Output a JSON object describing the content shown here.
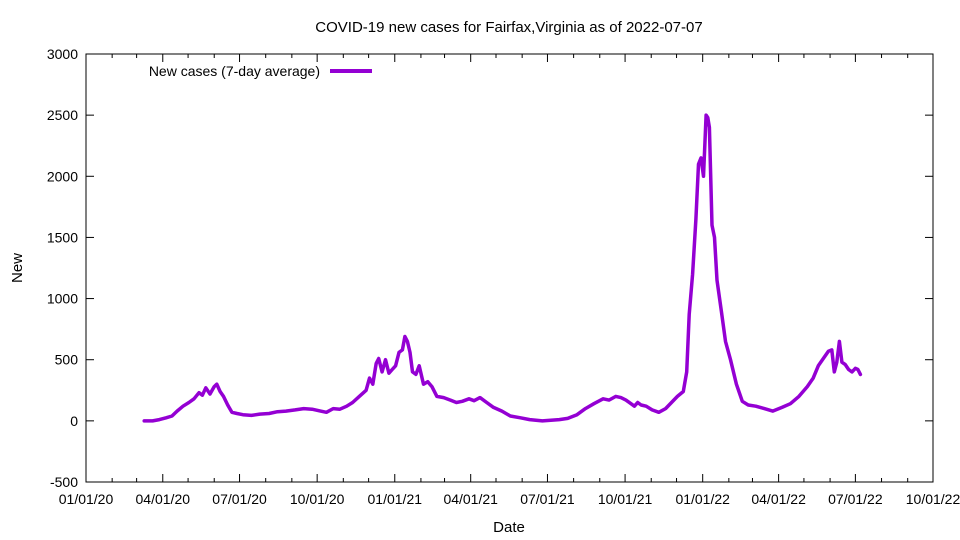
{
  "chart_data": {
    "type": "line",
    "title": "COVID-19 new cases for Fairfax,Virginia as of 2022-07-07",
    "xlabel": "Date",
    "ylabel": "New",
    "xlim": [
      "2020-01-01",
      "2022-10-01"
    ],
    "ylim": [
      -500,
      3000
    ],
    "x_ticks": [
      "2020-01-01",
      "2020-04-01",
      "2020-07-01",
      "2020-10-01",
      "2021-01-01",
      "2021-04-01",
      "2021-07-01",
      "2021-10-01",
      "2022-01-01",
      "2022-04-01",
      "2022-07-01",
      "2022-10-01"
    ],
    "x_tick_labels": [
      "01/01/20",
      "04/01/20",
      "07/01/20",
      "10/01/20",
      "01/01/21",
      "04/01/21",
      "07/01/21",
      "10/01/21",
      "01/01/22",
      "04/01/22",
      "07/01/22",
      "10/01/22"
    ],
    "y_ticks": [
      -500,
      0,
      500,
      1000,
      1500,
      2000,
      2500,
      3000
    ],
    "y_tick_labels": [
      "-500",
      "0",
      "500",
      "1000",
      "1500",
      "2000",
      "2500",
      "3000"
    ],
    "legend": {
      "position": "top-left",
      "entries": [
        "New cases (7-day average)"
      ]
    },
    "grid": false,
    "series": [
      {
        "name": "New cases (7-day average)",
        "color": "#9400d3",
        "points": [
          [
            "2020-03-10",
            0
          ],
          [
            "2020-03-20",
            0
          ],
          [
            "2020-03-28",
            10
          ],
          [
            "2020-04-05",
            25
          ],
          [
            "2020-04-12",
            40
          ],
          [
            "2020-04-18",
            80
          ],
          [
            "2020-04-25",
            120
          ],
          [
            "2020-05-02",
            150
          ],
          [
            "2020-05-08",
            180
          ],
          [
            "2020-05-14",
            230
          ],
          [
            "2020-05-18",
            210
          ],
          [
            "2020-05-22",
            270
          ],
          [
            "2020-05-27",
            220
          ],
          [
            "2020-06-01",
            280
          ],
          [
            "2020-06-04",
            300
          ],
          [
            "2020-06-08",
            240
          ],
          [
            "2020-06-12",
            200
          ],
          [
            "2020-06-17",
            130
          ],
          [
            "2020-06-22",
            70
          ],
          [
            "2020-06-28",
            60
          ],
          [
            "2020-07-05",
            50
          ],
          [
            "2020-07-15",
            45
          ],
          [
            "2020-07-25",
            55
          ],
          [
            "2020-08-05",
            60
          ],
          [
            "2020-08-15",
            75
          ],
          [
            "2020-08-25",
            80
          ],
          [
            "2020-09-05",
            90
          ],
          [
            "2020-09-15",
            100
          ],
          [
            "2020-09-25",
            95
          ],
          [
            "2020-10-05",
            80
          ],
          [
            "2020-10-12",
            70
          ],
          [
            "2020-10-20",
            100
          ],
          [
            "2020-10-28",
            95
          ],
          [
            "2020-11-05",
            120
          ],
          [
            "2020-11-12",
            150
          ],
          [
            "2020-11-20",
            200
          ],
          [
            "2020-11-28",
            250
          ],
          [
            "2020-12-02",
            350
          ],
          [
            "2020-12-06",
            300
          ],
          [
            "2020-12-10",
            470
          ],
          [
            "2020-12-13",
            510
          ],
          [
            "2020-12-17",
            400
          ],
          [
            "2020-12-21",
            500
          ],
          [
            "2020-12-25",
            390
          ],
          [
            "2020-12-29",
            420
          ],
          [
            "2021-01-02",
            450
          ],
          [
            "2021-01-06",
            560
          ],
          [
            "2021-01-10",
            580
          ],
          [
            "2021-01-13",
            690
          ],
          [
            "2021-01-16",
            650
          ],
          [
            "2021-01-19",
            560
          ],
          [
            "2021-01-22",
            400
          ],
          [
            "2021-01-26",
            380
          ],
          [
            "2021-01-30",
            450
          ],
          [
            "2021-02-04",
            300
          ],
          [
            "2021-02-09",
            320
          ],
          [
            "2021-02-14",
            280
          ],
          [
            "2021-02-20",
            200
          ],
          [
            "2021-02-28",
            190
          ],
          [
            "2021-03-08",
            170
          ],
          [
            "2021-03-15",
            150
          ],
          [
            "2021-03-22",
            160
          ],
          [
            "2021-03-30",
            180
          ],
          [
            "2021-04-05",
            165
          ],
          [
            "2021-04-12",
            190
          ],
          [
            "2021-04-20",
            150
          ],
          [
            "2021-04-28",
            110
          ],
          [
            "2021-05-08",
            80
          ],
          [
            "2021-05-18",
            40
          ],
          [
            "2021-05-30",
            25
          ],
          [
            "2021-06-10",
            10
          ],
          [
            "2021-06-25",
            0
          ],
          [
            "2021-07-05",
            5
          ],
          [
            "2021-07-15",
            10
          ],
          [
            "2021-07-25",
            20
          ],
          [
            "2021-08-05",
            50
          ],
          [
            "2021-08-15",
            100
          ],
          [
            "2021-08-25",
            140
          ],
          [
            "2021-09-05",
            180
          ],
          [
            "2021-09-12",
            170
          ],
          [
            "2021-09-20",
            200
          ],
          [
            "2021-09-26",
            190
          ],
          [
            "2021-10-02",
            170
          ],
          [
            "2021-10-08",
            140
          ],
          [
            "2021-10-12",
            120
          ],
          [
            "2021-10-16",
            150
          ],
          [
            "2021-10-20",
            130
          ],
          [
            "2021-10-26",
            120
          ],
          [
            "2021-11-02",
            90
          ],
          [
            "2021-11-10",
            70
          ],
          [
            "2021-11-18",
            100
          ],
          [
            "2021-11-25",
            150
          ],
          [
            "2021-12-02",
            200
          ],
          [
            "2021-12-09",
            240
          ],
          [
            "2021-12-13",
            400
          ],
          [
            "2021-12-16",
            870
          ],
          [
            "2021-12-20",
            1200
          ],
          [
            "2021-12-24",
            1650
          ],
          [
            "2021-12-27",
            2100
          ],
          [
            "2021-12-30",
            2150
          ],
          [
            "2022-01-02",
            2000
          ],
          [
            "2022-01-05",
            2500
          ],
          [
            "2022-01-07",
            2480
          ],
          [
            "2022-01-09",
            2400
          ],
          [
            "2022-01-12",
            1600
          ],
          [
            "2022-01-15",
            1500
          ],
          [
            "2022-01-18",
            1150
          ],
          [
            "2022-01-23",
            900
          ],
          [
            "2022-01-28",
            650
          ],
          [
            "2022-02-03",
            500
          ],
          [
            "2022-02-10",
            300
          ],
          [
            "2022-02-17",
            160
          ],
          [
            "2022-02-24",
            130
          ],
          [
            "2022-03-05",
            120
          ],
          [
            "2022-03-15",
            100
          ],
          [
            "2022-03-25",
            80
          ],
          [
            "2022-04-05",
            110
          ],
          [
            "2022-04-15",
            140
          ],
          [
            "2022-04-25",
            200
          ],
          [
            "2022-05-05",
            280
          ],
          [
            "2022-05-12",
            350
          ],
          [
            "2022-05-18",
            450
          ],
          [
            "2022-05-25",
            520
          ],
          [
            "2022-05-30",
            570
          ],
          [
            "2022-06-03",
            580
          ],
          [
            "2022-06-06",
            400
          ],
          [
            "2022-06-09",
            480
          ],
          [
            "2022-06-12",
            650
          ],
          [
            "2022-06-15",
            480
          ],
          [
            "2022-06-19",
            460
          ],
          [
            "2022-06-23",
            420
          ],
          [
            "2022-06-27",
            400
          ],
          [
            "2022-07-01",
            430
          ],
          [
            "2022-07-04",
            420
          ],
          [
            "2022-07-07",
            380
          ]
        ]
      }
    ]
  }
}
